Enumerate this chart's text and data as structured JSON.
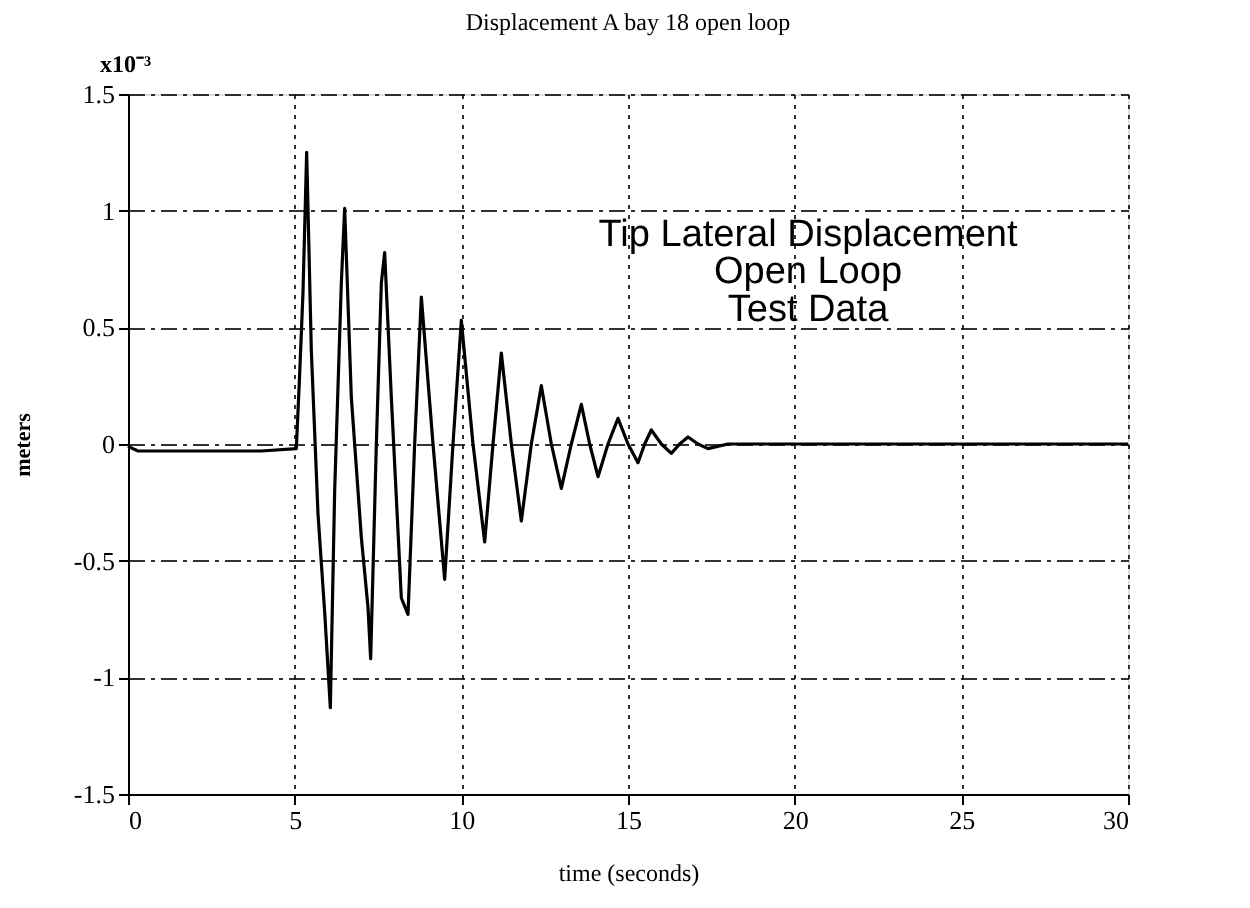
{
  "chart_data": {
    "type": "line",
    "title": "Displacement A bay 18  open loop",
    "xlabel": "time (seconds)",
    "ylabel": "meters",
    "annotations": [
      "x10⁻³",
      "Tip Lateral Displacement",
      "Open Loop",
      "Test Data"
    ],
    "xlim": [
      0,
      30
    ],
    "xticks": [
      0,
      5,
      10,
      15,
      20,
      25,
      30
    ],
    "ylim": [
      -1.5,
      1.5
    ],
    "yticks": [
      -1.5,
      -1,
      -0.5,
      0,
      0.5,
      1,
      1.5
    ],
    "grid": true,
    "marker": "none",
    "line_style": "solid",
    "series": [
      {
        "color": "#000000",
        "x": [
          0,
          0.3,
          2,
          4,
          5.05,
          5.15,
          5.25,
          5.36,
          5.5,
          5.7,
          5.9,
          6.07,
          6.2,
          6.4,
          6.5,
          6.7,
          7.0,
          7.2,
          7.28,
          7.45,
          7.6,
          7.7,
          7.9,
          8.2,
          8.4,
          8.6,
          8.8,
          9.15,
          9.5,
          9.75,
          10.0,
          10.35,
          10.7,
          10.95,
          11.2,
          11.5,
          11.8,
          12.1,
          12.4,
          12.7,
          13.0,
          13.3,
          13.6,
          13.85,
          14.1,
          14.4,
          14.7,
          15.0,
          15.3,
          15.5,
          15.7,
          16.0,
          16.3,
          16.55,
          16.8,
          17.1,
          17.4,
          18,
          20,
          25,
          30
        ],
        "values": [
          -0.01,
          -0.03,
          -0.03,
          -0.03,
          -0.02,
          0.3,
          0.65,
          1.25,
          0.4,
          -0.3,
          -0.72,
          -1.13,
          -0.2,
          0.69,
          1.01,
          0.2,
          -0.4,
          -0.7,
          -0.92,
          0.0,
          0.69,
          0.82,
          0.2,
          -0.66,
          -0.73,
          0.0,
          0.63,
          0.0,
          -0.58,
          0.0,
          0.53,
          0.0,
          -0.42,
          0.0,
          0.39,
          0.0,
          -0.33,
          0.0,
          0.25,
          0.0,
          -0.19,
          0.0,
          0.17,
          0.0,
          -0.14,
          0.0,
          0.11,
          0.0,
          -0.08,
          0.0,
          0.06,
          0.0,
          -0.04,
          0.0,
          0.03,
          0.0,
          -0.02,
          0.0,
          0.0,
          0.0,
          0.0
        ]
      }
    ]
  }
}
